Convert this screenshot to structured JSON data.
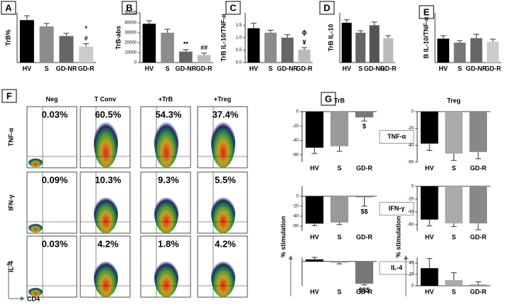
{
  "chart_data": [
    {
      "type": "bar",
      "panel": "A",
      "y_label": "TrB%",
      "categories": [
        "HV",
        "S",
        "GD-NR",
        "GD-R"
      ],
      "values": [
        12.8,
        10.9,
        8.0,
        4.8
      ],
      "errors": [
        1.3,
        0.9,
        0.8,
        0.9
      ],
      "colors": [
        "#000000",
        "#8c8c8c",
        "#666666",
        "#cccccc"
      ],
      "ylim": [
        0,
        15
      ],
      "annotations": [
        null,
        null,
        null,
        [
          "*",
          "#"
        ]
      ]
    },
    {
      "type": "bar",
      "panel": "B",
      "y_label": "TrB-abs",
      "categories": [
        "HV",
        "S",
        "GD-NR",
        "GD-R"
      ],
      "values": [
        39000,
        30000,
        11000,
        7500
      ],
      "errors": [
        3000,
        3500,
        2000,
        2000
      ],
      "colors": [
        "#000000",
        "#8c8c8c",
        "#666666",
        "#bbbbbb"
      ],
      "ylim": [
        0,
        50000
      ],
      "yticks": [
        0,
        10000,
        20000,
        30000,
        40000,
        50000
      ],
      "annotations": [
        null,
        null,
        [
          "**"
        ],
        [
          "##"
        ]
      ]
    },
    {
      "type": "bar",
      "panel": "C",
      "y_label": "TrB IL-10/TNF-α",
      "categories": [
        "HV",
        "S",
        "GD-NR",
        "GD-R"
      ],
      "values": [
        1.38,
        1.2,
        1.0,
        0.52
      ],
      "errors": [
        0.2,
        0.1,
        0.12,
        0.08
      ],
      "colors": [
        "#000000",
        "#8c8c8c",
        "#666666",
        "#bbbbbb"
      ],
      "ylim": [
        0,
        2.0
      ],
      "yticks": [
        {
          "value": 0,
          "label": "0.0"
        },
        0.5,
        {
          "value": 1,
          "label": "1.0"
        },
        1.5
      ],
      "annotations": [
        null,
        null,
        null,
        [
          "ϕ",
          "¥"
        ]
      ]
    },
    {
      "type": "bar",
      "panel": "D",
      "y_label": "TrB IL-10",
      "categories": [
        "HV",
        "S",
        "GD-NR",
        "GD-R"
      ],
      "values": [
        16,
        12,
        15,
        9.8
      ],
      "errors": [
        1.2,
        0.8,
        1.3,
        1.0
      ],
      "colors": [
        "#000000",
        "#666666",
        "#555555",
        "#bbbbbb"
      ],
      "ylim": [
        0,
        20
      ]
    },
    {
      "type": "bar",
      "panel": "E",
      "y_label": "B IL-10/TNF-α",
      "categories": [
        "HV",
        "S",
        "GD-NR",
        "GD-R"
      ],
      "values": [
        0.48,
        0.4,
        0.49,
        0.42
      ],
      "errors": [
        0.06,
        0.04,
        0.08,
        0.05
      ],
      "colors": [
        "#000000",
        "#777777",
        "#666666",
        "#cccccc"
      ],
      "ylim": [
        0,
        1
      ]
    },
    {
      "type": "bar",
      "panel": "G",
      "title": "TrB",
      "label": "TNF-α",
      "categories": [
        "HV",
        "S",
        "GD-R"
      ],
      "values": [
        -50,
        -48,
        -8
      ],
      "errors": [
        8,
        7,
        5
      ],
      "colors": [
        "#000000",
        "#999999",
        "#777777"
      ],
      "ylim": [
        -70,
        0
      ],
      "yticks": [
        -60,
        -40,
        -20,
        0
      ],
      "annotations": [
        null,
        null,
        [
          "$"
        ]
      ]
    },
    {
      "type": "bar",
      "label": "IFN-γ",
      "y_label": "% stimulation",
      "categories": [
        "HV",
        "S",
        "GD-R"
      ],
      "values": [
        -55,
        -53,
        -2
      ],
      "errors": [
        4,
        4,
        18
      ],
      "colors": [
        "#000000",
        "#999999",
        "#777777"
      ],
      "ylim": [
        -70,
        20
      ],
      "yticks": [
        -60,
        -40,
        -20,
        0
      ],
      "annotations": [
        null,
        null,
        [
          "$$"
        ]
      ]
    },
    {
      "type": "bar",
      "label": "IL-4",
      "categories": [
        "HV",
        "S",
        "GD-R"
      ],
      "values": [
        5,
        -3,
        -55
      ],
      "errors": [
        5,
        3,
        3
      ],
      "colors": [
        "#000000",
        "#999999",
        "#777777"
      ],
      "ylim": [
        -60,
        10
      ],
      "annotations": [
        null,
        null,
        [
          "$$$"
        ]
      ]
    },
    {
      "type": "bar",
      "title": "Treg",
      "categories": [
        "HV",
        "S",
        "GD-R"
      ],
      "values": [
        -38,
        -50,
        -48
      ],
      "errors": [
        8,
        8,
        8
      ],
      "colors": [
        "#000000",
        "#aaaaaa",
        "#888888"
      ],
      "ylim": [
        -60,
        0
      ],
      "yticks": [
        -60,
        -40,
        -20,
        0
      ]
    },
    {
      "type": "bar",
      "y_label": "% stimulation",
      "categories": [
        "HV",
        "S",
        "GD-R"
      ],
      "values": [
        -52,
        -58,
        -58
      ],
      "errors": [
        10,
        5,
        10
      ],
      "colors": [
        "#000000",
        "#aaaaaa",
        "#888888"
      ],
      "ylim": [
        -70,
        0
      ],
      "yticks": [
        -60,
        -40,
        -20,
        0
      ]
    },
    {
      "type": "bar",
      "categories": [
        "HV",
        "S",
        "GD-R"
      ],
      "values": [
        31,
        10,
        2
      ],
      "errors": [
        17,
        13,
        5
      ],
      "colors": [
        "#000000",
        "#aaaaaa",
        "#888888"
      ],
      "ylim": [
        0,
        50
      ],
      "yticks": [
        0,
        20,
        40
      ]
    }
  ],
  "flow": {
    "panel": "F",
    "columns": [
      "Neg",
      "T Conv",
      "+TrB",
      "+Treg"
    ],
    "x_label": "CD4",
    "rows": [
      {
        "name": "TNF-α",
        "values": [
          "0.03%",
          "60.5%",
          "54.3%",
          "37.4%"
        ]
      },
      {
        "name": "IFN-γ",
        "values": [
          "0.09%",
          "10.3%",
          "9.3%",
          "5.5%"
        ]
      },
      {
        "name": "IL-4",
        "values": [
          "0.03%",
          "4.2%",
          "1.8%",
          "4.2%"
        ]
      }
    ]
  }
}
